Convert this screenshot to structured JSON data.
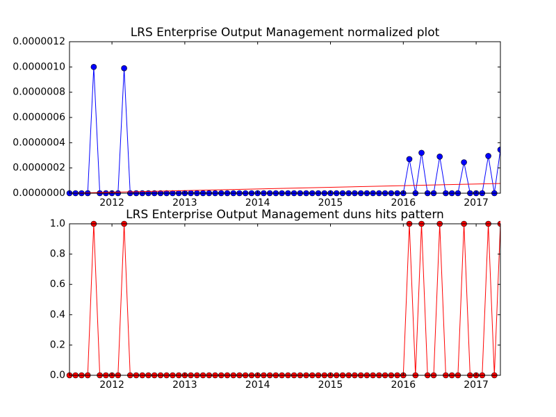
{
  "chart_data": [
    {
      "type": "line",
      "title": "LRS Enterprise Output Management normalized plot",
      "x": [
        2011.417,
        2011.5,
        2011.583,
        2011.667,
        2011.75,
        2011.833,
        2011.917,
        2012.0,
        2012.083,
        2012.167,
        2012.25,
        2012.333,
        2012.417,
        2012.5,
        2012.583,
        2012.667,
        2012.75,
        2012.833,
        2012.917,
        2013.0,
        2013.083,
        2013.167,
        2013.25,
        2013.333,
        2013.417,
        2013.5,
        2013.583,
        2013.667,
        2013.75,
        2013.833,
        2013.917,
        2014.0,
        2014.083,
        2014.167,
        2014.25,
        2014.333,
        2014.417,
        2014.5,
        2014.583,
        2014.667,
        2014.75,
        2014.833,
        2014.917,
        2015.0,
        2015.083,
        2015.167,
        2015.25,
        2015.333,
        2015.417,
        2015.5,
        2015.583,
        2015.667,
        2015.75,
        2015.833,
        2015.917,
        2016.0,
        2016.083,
        2016.167,
        2016.25,
        2016.333,
        2016.417,
        2016.5,
        2016.583,
        2016.667,
        2016.75,
        2016.833,
        2016.917,
        2017.0,
        2017.083,
        2017.167,
        2017.25,
        2017.333
      ],
      "series": [
        {
          "color": "#0000ff",
          "marker": true,
          "values": [
            0,
            0,
            0,
            0,
            1e-06,
            0,
            0,
            0,
            0,
            9.9e-07,
            0,
            0,
            0,
            0,
            0,
            0,
            0,
            0,
            0,
            0,
            0,
            0,
            0,
            0,
            0,
            0,
            0,
            0,
            0,
            0,
            0,
            0,
            0,
            0,
            0,
            0,
            0,
            0,
            0,
            0,
            0,
            0,
            0,
            0,
            0,
            0,
            0,
            0,
            0,
            0,
            0,
            0,
            0,
            0,
            0,
            0,
            2.7e-07,
            0,
            3.2e-07,
            0,
            0,
            2.9e-07,
            0,
            0,
            0,
            2.45e-07,
            0,
            0,
            0,
            2.95e-07,
            0,
            3.45e-07
          ]
        },
        {
          "color": "#ff0000",
          "marker": false,
          "x": [
            2011.417,
            2017.333
          ],
          "values": [
            0,
            7.7e-08
          ]
        }
      ],
      "xlim": [
        2011.417,
        2017.333
      ],
      "xticks": [
        2012,
        2013,
        2014,
        2015,
        2016,
        2017
      ],
      "ylim": [
        0,
        1.2e-06
      ],
      "yticks": [
        {
          "value": 0,
          "label": "0.0000000"
        },
        {
          "value": 2e-07,
          "label": "0.0000002"
        },
        {
          "value": 4e-07,
          "label": "0.0000004"
        },
        {
          "value": 6e-07,
          "label": "0.0000006"
        },
        {
          "value": 8e-07,
          "label": "0.0000008"
        },
        {
          "value": 1e-06,
          "label": "0.0000010"
        },
        {
          "value": 1.2e-06,
          "label": "0.0000012"
        }
      ]
    },
    {
      "type": "line",
      "title": "LRS Enterprise Output Management duns hits pattern",
      "x": [
        2011.417,
        2011.5,
        2011.583,
        2011.667,
        2011.75,
        2011.833,
        2011.917,
        2012.0,
        2012.083,
        2012.167,
        2012.25,
        2012.333,
        2012.417,
        2012.5,
        2012.583,
        2012.667,
        2012.75,
        2012.833,
        2012.917,
        2013.0,
        2013.083,
        2013.167,
        2013.25,
        2013.333,
        2013.417,
        2013.5,
        2013.583,
        2013.667,
        2013.75,
        2013.833,
        2013.917,
        2014.0,
        2014.083,
        2014.167,
        2014.25,
        2014.333,
        2014.417,
        2014.5,
        2014.583,
        2014.667,
        2014.75,
        2014.833,
        2014.917,
        2015.0,
        2015.083,
        2015.167,
        2015.25,
        2015.333,
        2015.417,
        2015.5,
        2015.583,
        2015.667,
        2015.75,
        2015.833,
        2015.917,
        2016.0,
        2016.083,
        2016.167,
        2016.25,
        2016.333,
        2016.417,
        2016.5,
        2016.583,
        2016.667,
        2016.75,
        2016.833,
        2016.917,
        2017.0,
        2017.083,
        2017.167,
        2017.25,
        2017.333
      ],
      "series": [
        {
          "color": "#ff0000",
          "marker": true,
          "values": [
            0,
            0,
            0,
            0,
            1,
            0,
            0,
            0,
            0,
            1,
            0,
            0,
            0,
            0,
            0,
            0,
            0,
            0,
            0,
            0,
            0,
            0,
            0,
            0,
            0,
            0,
            0,
            0,
            0,
            0,
            0,
            0,
            0,
            0,
            0,
            0,
            0,
            0,
            0,
            0,
            0,
            0,
            0,
            0,
            0,
            0,
            0,
            0,
            0,
            0,
            0,
            0,
            0,
            0,
            0,
            0,
            1,
            0,
            1,
            0,
            0,
            1,
            0,
            0,
            0,
            1,
            0,
            0,
            0,
            1,
            0,
            1
          ]
        }
      ],
      "xlim": [
        2011.417,
        2017.333
      ],
      "xticks": [
        2012,
        2013,
        2014,
        2015,
        2016,
        2017
      ],
      "ylim": [
        0,
        1
      ],
      "yticks": [
        {
          "value": 0,
          "label": "0.0"
        },
        {
          "value": 0.2,
          "label": "0.2"
        },
        {
          "value": 0.4,
          "label": "0.4"
        },
        {
          "value": 0.6,
          "label": "0.6"
        },
        {
          "value": 0.8,
          "label": "0.8"
        },
        {
          "value": 1,
          "label": "1.0"
        }
      ]
    }
  ]
}
